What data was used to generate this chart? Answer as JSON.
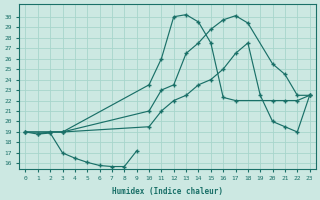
{
  "xlabel": "Humidex (Indice chaleur)",
  "bg_color": "#cce8e2",
  "grid_color": "#a8d5cc",
  "line_color": "#1a7068",
  "marker": "+",
  "xlim": [
    -0.5,
    23.5
  ],
  "ylim": [
    15.5,
    31.2
  ],
  "xticks": [
    0,
    1,
    2,
    3,
    4,
    5,
    6,
    7,
    8,
    9,
    10,
    11,
    12,
    13,
    14,
    15,
    16,
    17,
    18,
    19,
    20,
    21,
    22,
    23
  ],
  "yticks": [
    16,
    17,
    18,
    19,
    20,
    21,
    22,
    23,
    24,
    25,
    26,
    27,
    28,
    29,
    30
  ],
  "line1_x": [
    0,
    1,
    2,
    3,
    10,
    11,
    12,
    13,
    14,
    15,
    16,
    17,
    18,
    20,
    21,
    22,
    23
  ],
  "line1_y": [
    19.0,
    18.8,
    19.0,
    19.0,
    21.0,
    23.0,
    23.5,
    26.5,
    27.5,
    28.8,
    29.7,
    30.1,
    29.4,
    25.5,
    24.5,
    22.5,
    22.5
  ],
  "line2_x": [
    0,
    3,
    10,
    11,
    12,
    13,
    14,
    15,
    16,
    17,
    20,
    21,
    22,
    23
  ],
  "line2_y": [
    19.0,
    19.0,
    23.5,
    26.0,
    30.0,
    30.2,
    29.5,
    27.5,
    22.3,
    22.0,
    22.0,
    22.0,
    22.0,
    22.5
  ],
  "line3_x": [
    0,
    3,
    10,
    11,
    12,
    13,
    14,
    15,
    16,
    17,
    18,
    19,
    20,
    21,
    22,
    23
  ],
  "line3_y": [
    19.0,
    19.0,
    19.5,
    21.0,
    22.0,
    22.5,
    23.5,
    24.0,
    25.0,
    26.5,
    27.5,
    22.5,
    20.0,
    19.5,
    19.0,
    22.5
  ],
  "line4_x": [
    1,
    2,
    3,
    4,
    5,
    6,
    7,
    8,
    9
  ],
  "line4_y": [
    18.8,
    18.9,
    17.0,
    16.5,
    16.1,
    15.8,
    15.7,
    15.7,
    17.2
  ]
}
